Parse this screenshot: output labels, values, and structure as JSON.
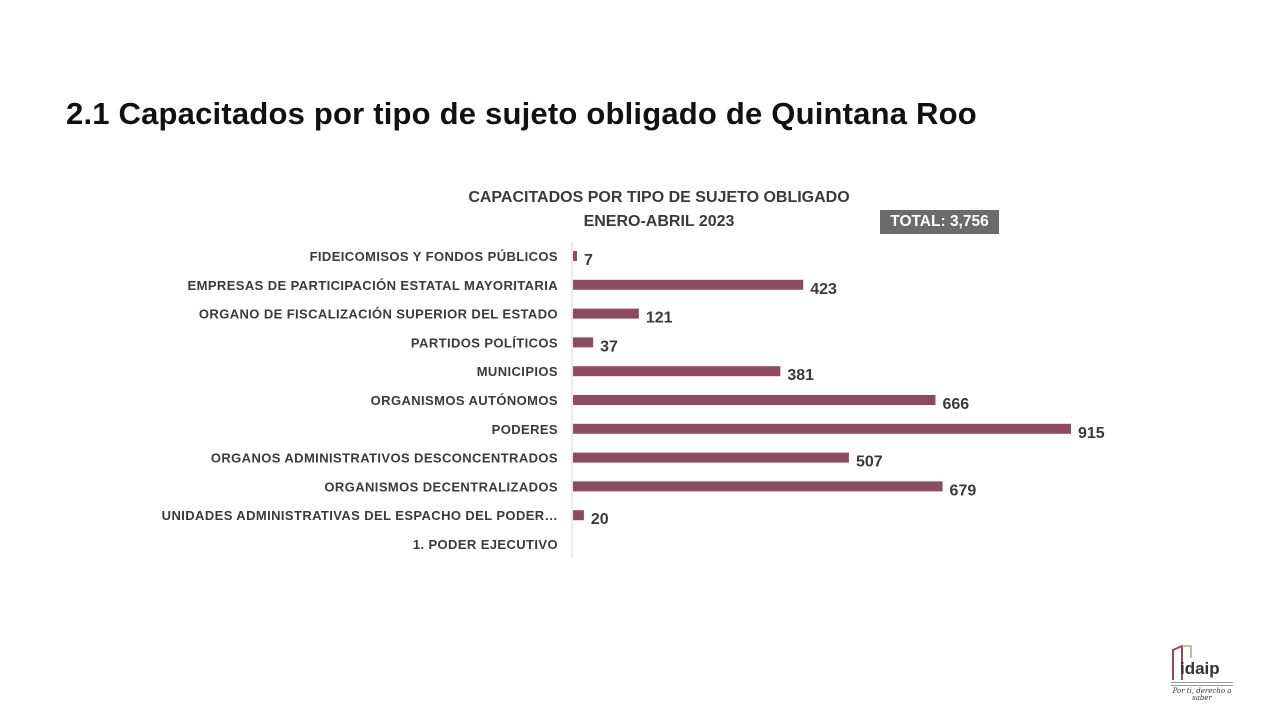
{
  "slide": {
    "title": "2.1 Capacitados por tipo de sujeto obligado de Quintana Roo"
  },
  "colors": {
    "bar": "#8e4a5e",
    "badge": "#6b6b6b",
    "text": "#3a3a3a"
  },
  "logo": {
    "text": "idaip",
    "tagline": "Por ti, derecho a saber"
  },
  "chart_data": {
    "type": "bar",
    "orientation": "horizontal",
    "title": "CAPACITADOS POR TIPO DE SUJETO OBLIGADO",
    "subtitle": "ENERO-ABRIL 2023",
    "total_label": "TOTAL: 3,756",
    "categories": [
      "FIDEICOMISOS Y FONDOS PÚBLICOS",
      "EMPRESAS DE PARTICIPACIÓN ESTATAL MAYORITARIA",
      "ORGANO DE FISCALIZACIÓN SUPERIOR DEL ESTADO",
      "PARTIDOS POLÍTICOS",
      "MUNICIPIOS",
      "ORGANISMOS AUTÓNOMOS",
      "PODERES",
      "ORGANOS ADMINISTRATIVOS DESCONCENTRADOS",
      "ORGANISMOS DECENTRALIZADOS",
      "UNIDADES ADMINISTRATIVAS DEL ESPACHO DEL PODER…",
      "1. PODER EJECUTIVO"
    ],
    "values": [
      7,
      423,
      121,
      37,
      381,
      666,
      915,
      507,
      679,
      20,
      null
    ],
    "xlim": [
      0,
      915
    ],
    "grid": false,
    "legend": "none"
  }
}
